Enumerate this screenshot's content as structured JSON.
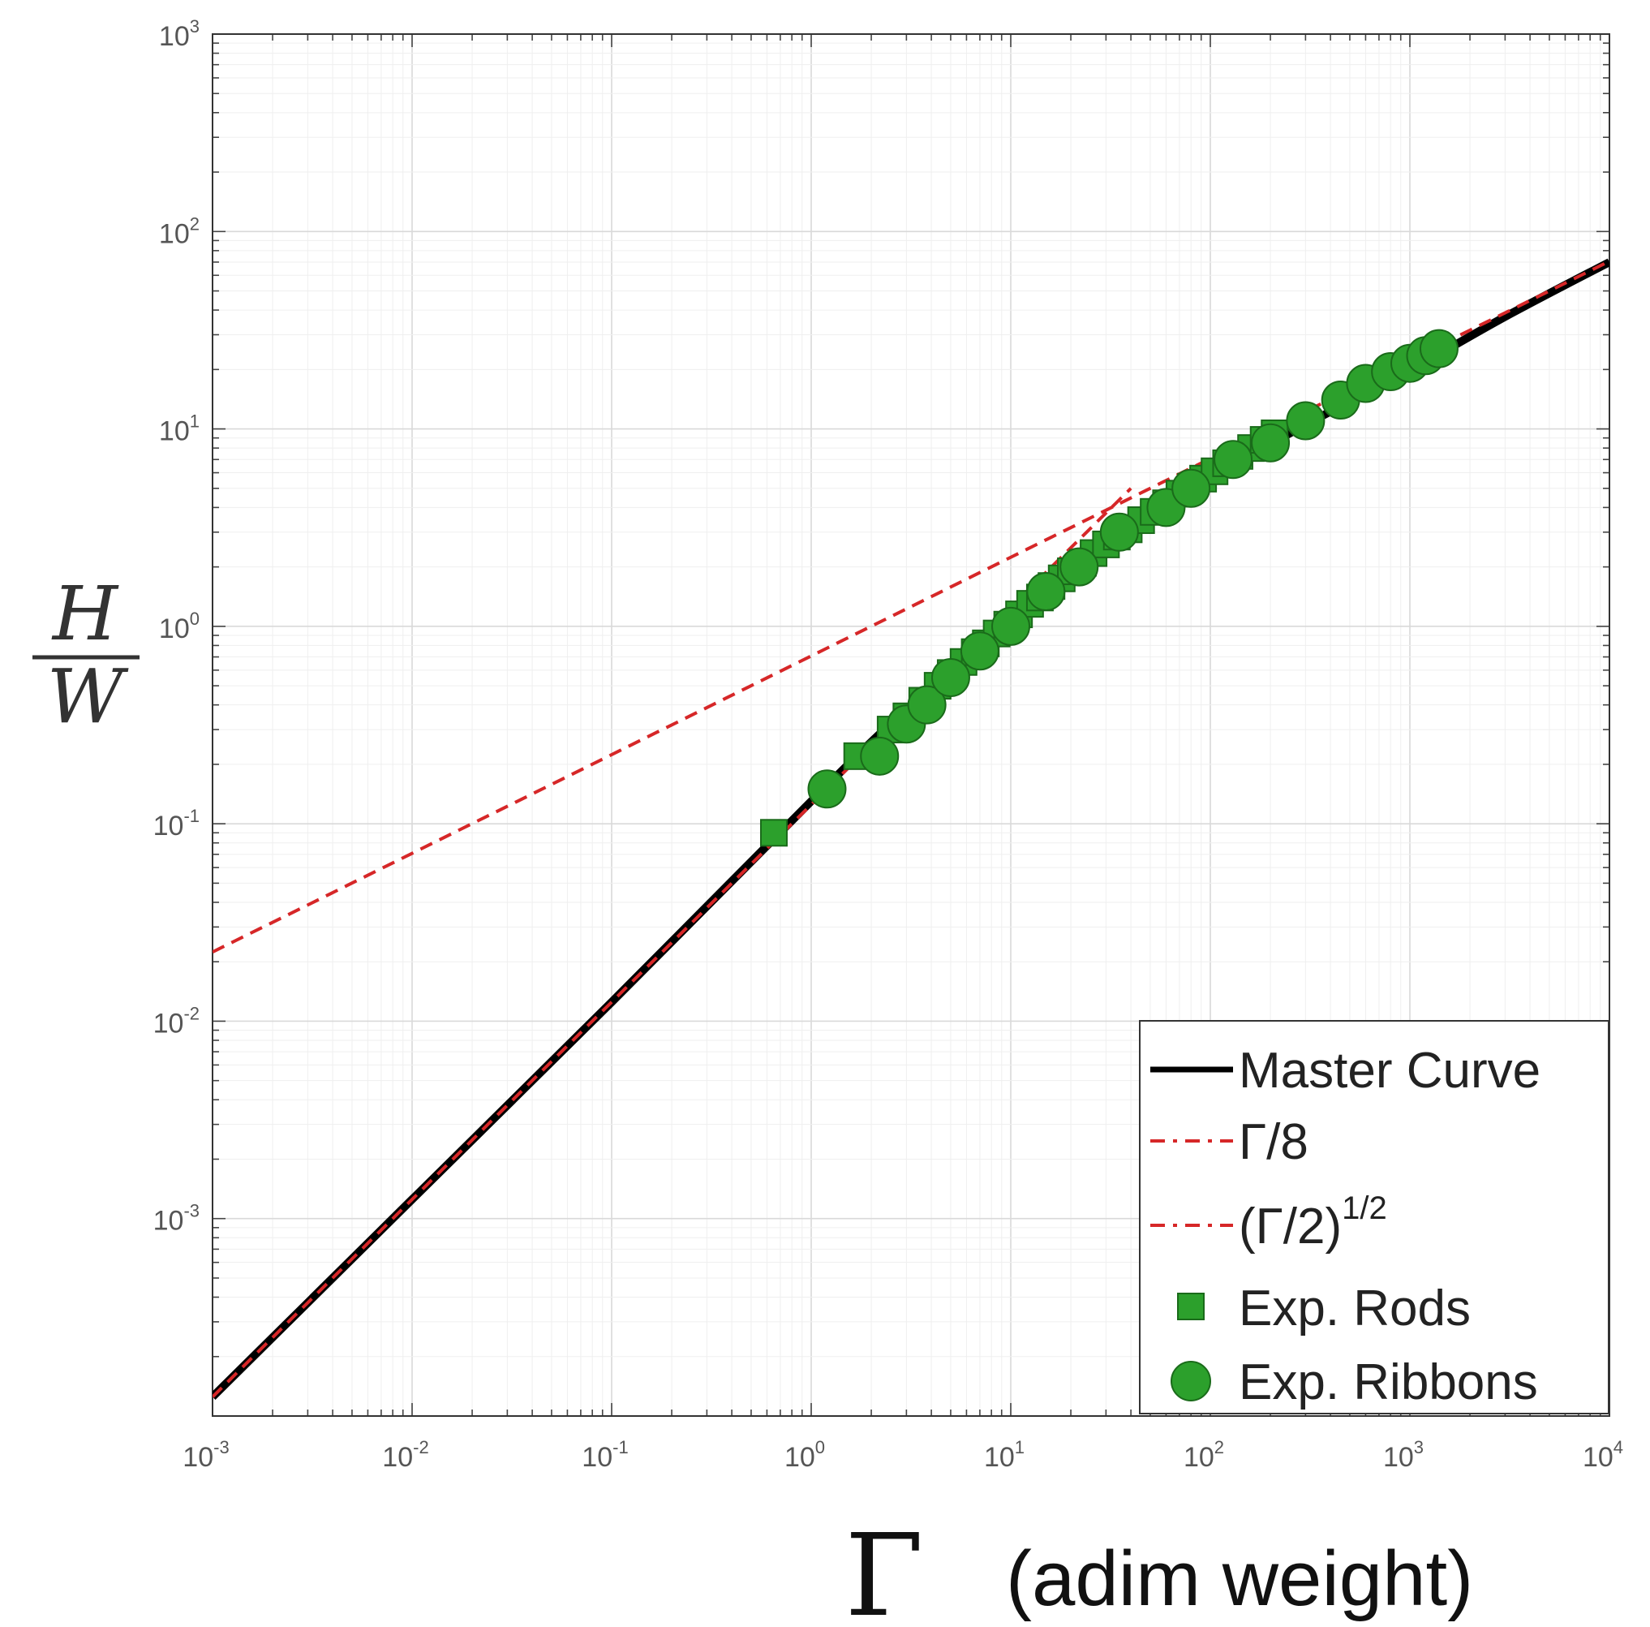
{
  "chart_data": {
    "type": "line",
    "title": "",
    "x_scale": "log",
    "y_scale": "log",
    "xlim": [
      0.001,
      10000
    ],
    "ylim": [
      0.0001,
      1000
    ],
    "grid": true,
    "legend_position": "bottom-right",
    "xlabel": {
      "symbol": "Γ",
      "text": "(adim weight)"
    },
    "ylabel": {
      "numerator": "H",
      "denominator": "W"
    },
    "x_ticks": [
      {
        "base": "10",
        "exp": "-3",
        "value": 0.001
      },
      {
        "base": "10",
        "exp": "-2",
        "value": 0.01
      },
      {
        "base": "10",
        "exp": "-1",
        "value": 0.1
      },
      {
        "base": "10",
        "exp": "0",
        "value": 1
      },
      {
        "base": "10",
        "exp": "1",
        "value": 10
      },
      {
        "base": "10",
        "exp": "2",
        "value": 100
      },
      {
        "base": "10",
        "exp": "3",
        "value": 1000
      },
      {
        "base": "10",
        "exp": "4",
        "value": 10000
      }
    ],
    "y_ticks": [
      {
        "base": "10",
        "exp": "-3",
        "value": 0.001
      },
      {
        "base": "10",
        "exp": "-2",
        "value": 0.01
      },
      {
        "base": "10",
        "exp": "-1",
        "value": 0.1
      },
      {
        "base": "10",
        "exp": "0",
        "value": 1
      },
      {
        "base": "10",
        "exp": "1",
        "value": 10
      },
      {
        "base": "10",
        "exp": "2",
        "value": 100
      },
      {
        "base": "10",
        "exp": "3",
        "value": 1000
      }
    ],
    "series": [
      {
        "name": "Master Curve",
        "kind": "line",
        "color": "#000000",
        "x": [
          0.001,
          0.01,
          0.1,
          1,
          3,
          10,
          30,
          100,
          300,
          1000,
          3000,
          10000
        ],
        "y": [
          0.000125,
          0.00125,
          0.0125,
          0.13,
          0.38,
          1.05,
          2.5,
          5.6,
          10.5,
          19.8,
          37,
          70
        ]
      },
      {
        "name": "Γ/8",
        "kind": "dashed",
        "color": "#d62728",
        "x": [
          0.001,
          40
        ],
        "y": [
          0.000125,
          5
        ]
      },
      {
        "name": "(Γ/2)^1/2",
        "kind": "dashed",
        "color": "#d62728",
        "x": [
          0.001,
          10000
        ],
        "y": [
          0.0224,
          70.7
        ]
      },
      {
        "name": "Exp. Rods",
        "kind": "marker",
        "marker": "square",
        "color": "#2ca02c",
        "x": [
          0.65,
          1.7,
          2.5,
          3.0,
          3.6,
          4.3,
          5.0,
          5.8,
          6.6,
          7.5,
          8.5,
          9.6,
          11,
          12.5,
          14,
          16,
          18,
          20,
          23,
          26,
          30,
          34,
          39,
          45,
          52,
          60,
          70,
          80,
          92,
          105,
          120,
          140,
          160,
          185,
          210
        ],
        "y": [
          0.09,
          0.22,
          0.3,
          0.35,
          0.42,
          0.5,
          0.58,
          0.66,
          0.74,
          0.82,
          0.92,
          1.02,
          1.15,
          1.3,
          1.4,
          1.6,
          1.75,
          1.9,
          2.1,
          2.35,
          2.6,
          2.85,
          3.1,
          3.45,
          3.8,
          4.2,
          4.7,
          5.1,
          5.6,
          6.1,
          6.7,
          7.3,
          8.0,
          8.8,
          9.5
        ]
      },
      {
        "name": "Exp. Ribbons",
        "kind": "marker",
        "marker": "circle",
        "color": "#2ca02c",
        "x": [
          1.2,
          2.2,
          3.0,
          3.8,
          5.0,
          7.0,
          10,
          15,
          22,
          35,
          60,
          80,
          130,
          200,
          300,
          450,
          600,
          800,
          1000,
          1200,
          1400
        ],
        "y": [
          0.15,
          0.22,
          0.32,
          0.4,
          0.55,
          0.75,
          1.0,
          1.5,
          2.0,
          3.0,
          4.0,
          5.0,
          7.0,
          8.5,
          11,
          14,
          17,
          19.5,
          21.5,
          23.5,
          25.5
        ]
      }
    ]
  },
  "legend": {
    "items": [
      {
        "label": "Master Curve"
      },
      {
        "label": "Γ/8"
      },
      {
        "label": "(Γ/2)",
        "sup": "1/2"
      },
      {
        "label": "Exp. Rods"
      },
      {
        "label": "Exp. Ribbons"
      }
    ]
  }
}
